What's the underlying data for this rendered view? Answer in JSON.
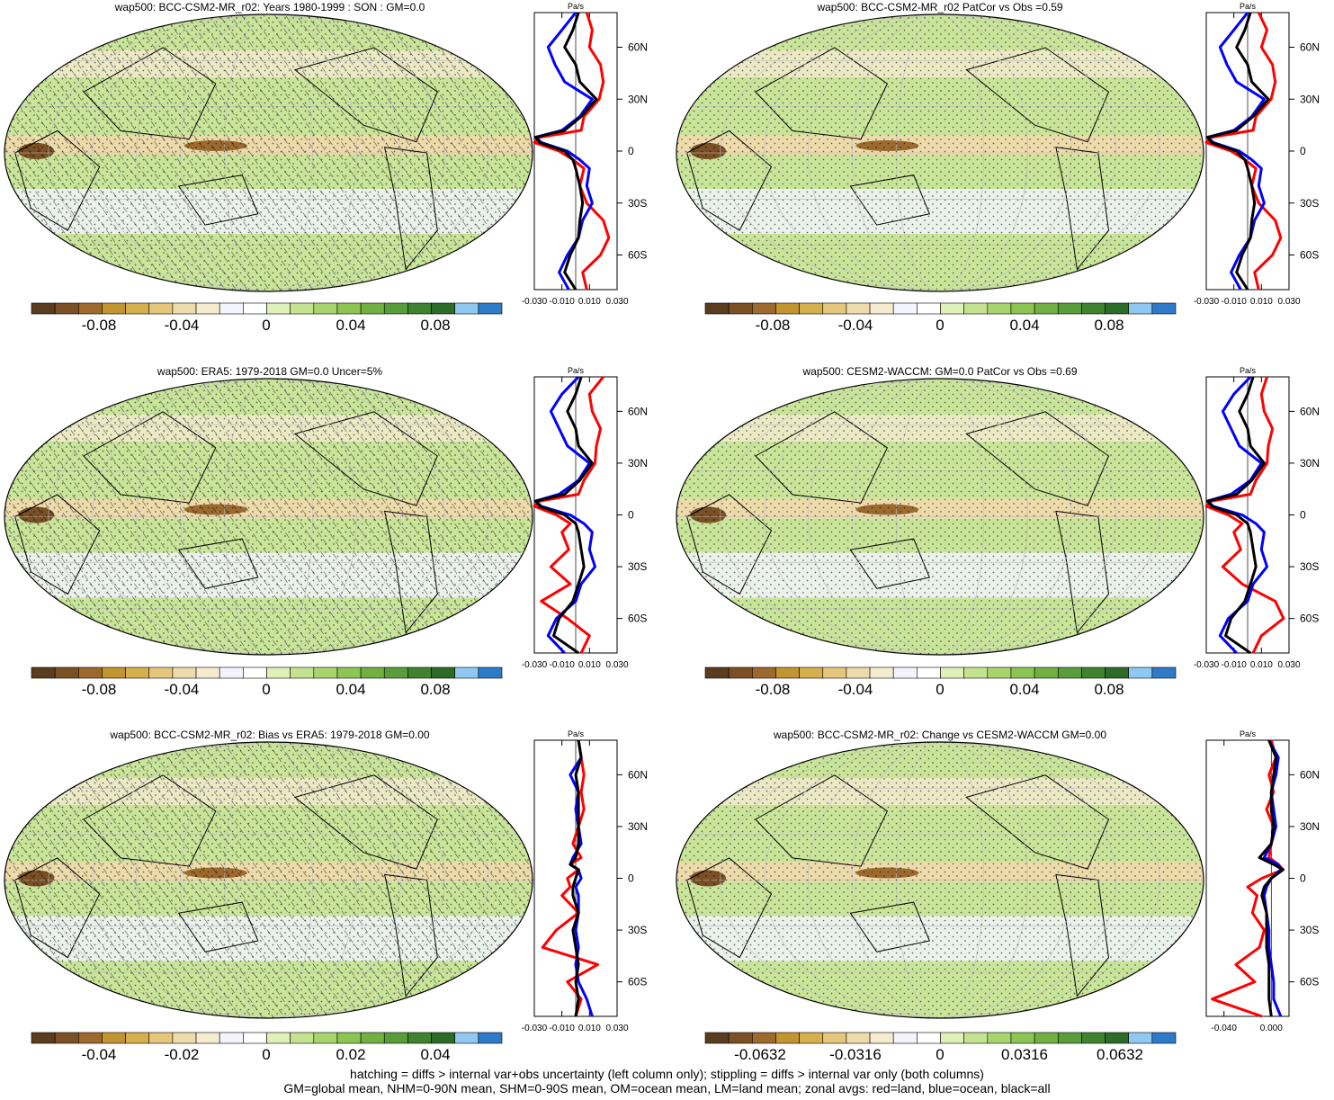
{
  "figure": {
    "footer": [
      "hatching = diffs > internal var+obs uncertainty (left column only); stippling = diffs > internal var only (both columns)",
      "GM=global mean, NHM=0-90N mean, SHM=0-90S mean, OM=ocean mean, LM=land mean; zonal avgs: red=land, blue=ocean, black=all"
    ]
  },
  "colors": {
    "land_line": "#ff0000",
    "ocean_line": "#0000ff",
    "all_line": "#000000",
    "colorbar": [
      "#5a3d1e",
      "#7a5024",
      "#9c6a2e",
      "#c2952e",
      "#d6b04c",
      "#e4c77a",
      "#eedbab",
      "#f5ebcf",
      "#f4f4ff",
      "#ffffff",
      "#dff0b8",
      "#c4e391",
      "#a8d46d",
      "#8dc552",
      "#72b043",
      "#5a9c3a",
      "#3f8230",
      "#2c6b28",
      "#8fc8f0",
      "#2d7bc8"
    ]
  },
  "chart_data": [
    {
      "type": "heatmap",
      "title": "wap500: BCC-CSM2-MR_r02: Years 1980-1999 : SON : GM=0.0",
      "hatching": true,
      "colorbar_ticks": [
        "-0.08",
        "-0.04",
        "0",
        "0.04",
        "0.08"
      ],
      "zonal": {
        "unit": "Pa/s",
        "x_ticks": [
          "-0.030",
          "-0.010",
          "0.010",
          "0.030"
        ],
        "xlim": [
          -0.03,
          0.03
        ],
        "lat_ticks": [
          "60N",
          "30N",
          "0",
          "30S",
          "60S"
        ],
        "lat_values": [
          60,
          30,
          0,
          -30,
          -60
        ],
        "ylim": [
          -80,
          80
        ],
        "lat": [
          80,
          70,
          60,
          50,
          40,
          30,
          20,
          12,
          8,
          5,
          0,
          -5,
          -10,
          -20,
          -30,
          -40,
          -50,
          -60,
          -70,
          -80
        ],
        "land": [
          0.008,
          0.012,
          0.01,
          0.018,
          0.02,
          0.017,
          0.006,
          0.004,
          -0.026,
          -0.03,
          -0.012,
          -0.002,
          0.006,
          0.003,
          0.008,
          0.02,
          0.024,
          0.018,
          0.005,
          0.008
        ],
        "ocean": [
          0.0,
          -0.01,
          -0.02,
          -0.015,
          -0.008,
          0.012,
          0.003,
          -0.01,
          -0.029,
          -0.025,
          -0.006,
          0.003,
          0.01,
          0.008,
          0.012,
          0.005,
          0.002,
          -0.006,
          -0.012,
          -0.005
        ],
        "all": [
          0.002,
          -0.002,
          -0.008,
          0.0,
          0.003,
          0.015,
          0.004,
          -0.008,
          -0.029,
          -0.026,
          -0.008,
          -0.002,
          0.0,
          0.003,
          0.005,
          0.003,
          0.002,
          -0.004,
          -0.008,
          0.0
        ]
      }
    },
    {
      "type": "heatmap",
      "title": "wap500: BCC-CSM2-MR_r02 PatCor vs Obs =0.59",
      "hatching": false,
      "colorbar_ticks": [
        "-0.08",
        "-0.04",
        "0",
        "0.04",
        "0.08"
      ],
      "zonal": {
        "unit": "Pa/s",
        "x_ticks": [
          "-0.030",
          "-0.010",
          "0.010",
          "0.030"
        ],
        "xlim": [
          -0.03,
          0.03
        ],
        "lat_ticks": [
          "60N",
          "30N",
          "0",
          "30S",
          "60S"
        ],
        "lat_values": [
          60,
          30,
          0,
          -30,
          -60
        ],
        "ylim": [
          -80,
          80
        ],
        "lat": [
          80,
          70,
          60,
          50,
          40,
          30,
          20,
          12,
          8,
          5,
          0,
          -5,
          -10,
          -20,
          -30,
          -40,
          -50,
          -60,
          -70,
          -80
        ],
        "land": [
          0.008,
          0.014,
          0.01,
          0.018,
          0.02,
          0.017,
          0.006,
          0.004,
          -0.026,
          -0.03,
          -0.012,
          -0.002,
          0.006,
          0.003,
          0.008,
          0.02,
          0.024,
          0.018,
          0.005,
          0.008
        ],
        "ocean": [
          0.0,
          -0.01,
          -0.02,
          -0.015,
          -0.008,
          0.012,
          0.003,
          -0.01,
          -0.029,
          -0.025,
          -0.006,
          0.003,
          0.01,
          0.008,
          0.012,
          0.005,
          0.002,
          -0.006,
          -0.012,
          -0.005
        ],
        "all": [
          0.002,
          -0.002,
          -0.008,
          0.0,
          0.003,
          0.015,
          0.004,
          -0.008,
          -0.029,
          -0.026,
          -0.008,
          -0.002,
          0.0,
          0.003,
          0.005,
          0.003,
          0.002,
          -0.004,
          -0.008,
          0.0
        ]
      }
    },
    {
      "type": "heatmap",
      "title": "wap500: ERA5: 1979-2018 GM=0.0 Uncer=5%",
      "hatching": true,
      "colorbar_ticks": [
        "-0.08",
        "-0.04",
        "0",
        "0.04",
        "0.08"
      ],
      "zonal": {
        "unit": "Pa/s",
        "x_ticks": [
          "-0.030",
          "-0.010",
          "0.010",
          "0.030"
        ],
        "xlim": [
          -0.03,
          0.03
        ],
        "lat_ticks": [
          "60N",
          "30N",
          "0",
          "30S",
          "60S"
        ],
        "lat_values": [
          60,
          30,
          0,
          -30,
          -60
        ],
        "ylim": [
          -80,
          80
        ],
        "lat": [
          80,
          70,
          60,
          50,
          40,
          30,
          20,
          12,
          8,
          5,
          0,
          -5,
          -10,
          -20,
          -30,
          -40,
          -50,
          -60,
          -70,
          -80
        ],
        "land": [
          0.02,
          0.01,
          0.012,
          0.018,
          0.015,
          0.014,
          0.006,
          0.002,
          -0.026,
          -0.03,
          -0.014,
          -0.004,
          -0.01,
          -0.005,
          -0.018,
          -0.004,
          -0.025,
          -0.006,
          0.01,
          0.004
        ],
        "ocean": [
          0.002,
          -0.01,
          -0.018,
          -0.012,
          -0.006,
          0.01,
          0.002,
          -0.012,
          -0.029,
          -0.025,
          -0.004,
          0.006,
          0.012,
          0.01,
          0.014,
          0.004,
          0.0,
          -0.014,
          -0.02,
          -0.008
        ],
        "all": [
          0.004,
          0.0,
          -0.006,
          0.0,
          0.002,
          0.012,
          0.003,
          -0.008,
          -0.029,
          -0.026,
          -0.008,
          0.0,
          0.002,
          0.004,
          0.006,
          0.002,
          -0.002,
          -0.012,
          -0.016,
          0.002
        ]
      }
    },
    {
      "type": "heatmap",
      "title": "wap500: CESM2-WACCM: GM=0.0 PatCor vs Obs =0.69",
      "hatching": false,
      "colorbar_ticks": [
        "-0.08",
        "-0.04",
        "0",
        "0.04",
        "0.08"
      ],
      "zonal": {
        "unit": "Pa/s",
        "x_ticks": [
          "-0.030",
          "-0.010",
          "0.010",
          "0.030"
        ],
        "xlim": [
          -0.03,
          0.03
        ],
        "lat_ticks": [
          "60N",
          "30N",
          "0",
          "30S",
          "60S"
        ],
        "lat_values": [
          60,
          30,
          0,
          -30,
          -60
        ],
        "ylim": [
          -80,
          80
        ],
        "lat": [
          80,
          70,
          60,
          50,
          40,
          30,
          20,
          12,
          8,
          5,
          0,
          -5,
          -10,
          -20,
          -30,
          -40,
          -50,
          -60,
          -70,
          -80
        ],
        "land": [
          0.014,
          0.01,
          0.012,
          0.018,
          0.015,
          0.014,
          0.006,
          0.002,
          -0.026,
          -0.03,
          -0.014,
          -0.004,
          -0.01,
          -0.005,
          -0.018,
          -0.004,
          0.02,
          0.026,
          0.01,
          0.004
        ],
        "ocean": [
          0.002,
          -0.01,
          -0.018,
          -0.012,
          -0.006,
          0.01,
          0.002,
          -0.012,
          -0.029,
          -0.025,
          -0.004,
          0.006,
          0.012,
          0.01,
          0.014,
          0.004,
          0.0,
          -0.014,
          -0.02,
          -0.008
        ],
        "all": [
          0.004,
          0.0,
          -0.006,
          0.0,
          0.002,
          0.012,
          0.003,
          -0.008,
          -0.029,
          -0.026,
          -0.008,
          0.0,
          0.002,
          0.004,
          0.006,
          0.002,
          -0.002,
          -0.012,
          -0.016,
          0.002
        ]
      }
    },
    {
      "type": "heatmap",
      "title": "wap500: BCC-CSM2-MR_r02: Bias vs ERA5: 1979-2018  GM=0.00",
      "hatching": true,
      "colorbar_ticks": [
        "-0.04",
        "-0.02",
        "0",
        "0.02",
        "0.04"
      ],
      "zonal": {
        "unit": "Pa/s",
        "x_ticks": [
          "-0.030",
          "-0.010",
          "0.010",
          "0.030"
        ],
        "xlim": [
          -0.03,
          0.03
        ],
        "lat_ticks": [
          "60N",
          "30N",
          "0",
          "30S",
          "60S"
        ],
        "lat_values": [
          60,
          30,
          0,
          -30,
          -60
        ],
        "ylim": [
          -80,
          80
        ],
        "lat": [
          80,
          70,
          60,
          50,
          40,
          30,
          20,
          12,
          8,
          5,
          0,
          -5,
          -10,
          -20,
          -30,
          -40,
          -50,
          -60,
          -70,
          -80
        ],
        "land": [
          0.002,
          0.004,
          0.006,
          0.004,
          0.006,
          0.002,
          -0.002,
          0.004,
          -0.004,
          0.002,
          -0.006,
          -0.004,
          -0.01,
          0.002,
          -0.014,
          -0.024,
          0.016,
          -0.006,
          0.004,
          0.0
        ],
        "ocean": [
          0.002,
          0.004,
          -0.004,
          0.002,
          0.0,
          0.002,
          0.004,
          -0.002,
          -0.004,
          0.002,
          0.004,
          0.0,
          0.002,
          0.002,
          0.0,
          0.002,
          0.0,
          0.002,
          0.008,
          0.012
        ],
        "all": [
          0.002,
          0.004,
          0.0,
          0.002,
          0.002,
          0.002,
          0.002,
          0.0,
          -0.004,
          0.002,
          0.0,
          -0.002,
          -0.002,
          0.002,
          -0.002,
          0.0,
          0.002,
          0.0,
          0.002,
          0.0
        ]
      }
    },
    {
      "type": "heatmap",
      "title": "wap500: BCC-CSM2-MR_r02: Change vs CESM2-WACCM GM=0.00",
      "hatching": false,
      "colorbar_ticks": [
        "-0.0632",
        "-0.0316",
        "0",
        "0.0316",
        "0.0632"
      ],
      "zonal": {
        "unit": "Pa/s",
        "x_ticks": [
          "-0.040",
          "0.000"
        ],
        "xlim": [
          -0.055,
          0.015
        ],
        "lat_ticks": [
          "60N",
          "30N",
          "0",
          "30S",
          "60S"
        ],
        "lat_values": [
          60,
          30,
          0,
          -30,
          -60
        ],
        "ylim": [
          -80,
          80
        ],
        "lat": [
          80,
          70,
          60,
          50,
          40,
          30,
          20,
          12,
          8,
          5,
          0,
          -5,
          -10,
          -20,
          -30,
          -40,
          -50,
          -60,
          -70,
          -80
        ],
        "land": [
          0.0,
          0.004,
          -0.002,
          0.002,
          -0.004,
          0.002,
          0.0,
          -0.002,
          0.006,
          0.01,
          -0.008,
          -0.02,
          -0.012,
          -0.016,
          -0.006,
          -0.01,
          -0.03,
          -0.014,
          -0.05,
          -0.008
        ],
        "ocean": [
          -0.002,
          0.006,
          0.004,
          0.0,
          0.002,
          0.004,
          0.0,
          -0.006,
          0.006,
          0.008,
          0.0,
          -0.004,
          -0.006,
          -0.004,
          -0.002,
          -0.002,
          0.0,
          0.002,
          0.002,
          0.008
        ],
        "all": [
          -0.002,
          0.004,
          0.002,
          0.0,
          0.0,
          0.002,
          0.0,
          -0.01,
          0.002,
          0.01,
          0.0,
          -0.006,
          -0.008,
          -0.004,
          -0.004,
          -0.004,
          -0.002,
          -0.002,
          -0.002,
          0.0
        ]
      }
    }
  ]
}
